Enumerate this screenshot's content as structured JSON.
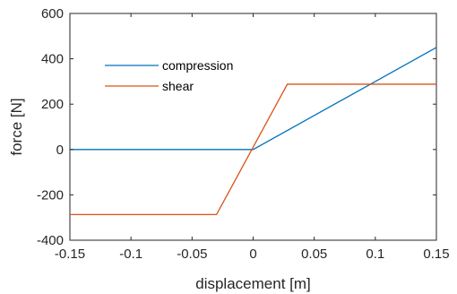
{
  "chart_data": {
    "type": "line",
    "title": "",
    "xlabel": "displacement [m]",
    "ylabel": "force [N]",
    "xlim": [
      -0.15,
      0.15
    ],
    "ylim": [
      -400,
      600
    ],
    "xticks": [
      -0.15,
      -0.1,
      -0.05,
      0,
      0.05,
      0.1,
      0.15
    ],
    "xtick_labels": [
      "-0.15",
      "-0.1",
      "-0.05",
      "0",
      "0.05",
      "0.1",
      "0.15"
    ],
    "yticks": [
      -400,
      -200,
      0,
      200,
      400,
      600
    ],
    "ytick_labels": [
      "-400",
      "-200",
      "0",
      "200",
      "400",
      "600"
    ],
    "grid": false,
    "legend_position": "top-left",
    "series": [
      {
        "name": "compression",
        "color": "#0072BD",
        "x": [
          -0.15,
          0,
          0.15
        ],
        "y": [
          0,
          0,
          450
        ]
      },
      {
        "name": "shear",
        "color": "#D95319",
        "x": [
          -0.15,
          -0.03,
          0.028,
          0.15
        ],
        "y": [
          -287,
          -287,
          288,
          288
        ]
      }
    ]
  }
}
